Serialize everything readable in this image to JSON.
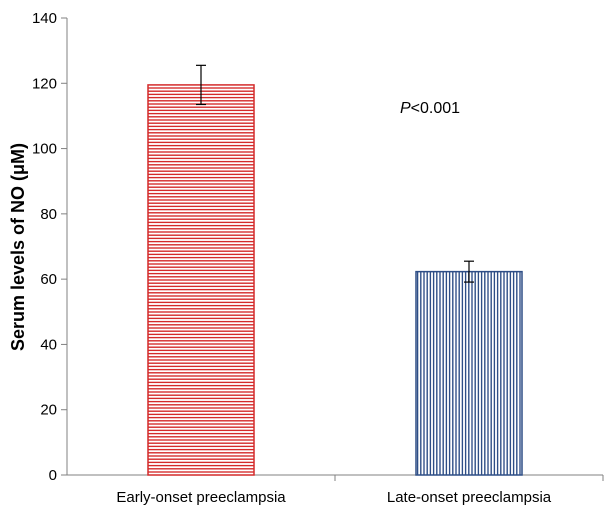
{
  "chart_data": {
    "type": "bar",
    "title": "",
    "xlabel": "",
    "ylabel": "Serum levels of NO (μM)",
    "ylim": [
      0,
      140
    ],
    "yticks": [
      0,
      20,
      40,
      60,
      80,
      100,
      120,
      140
    ],
    "grid": false,
    "categories": [
      "Early-onset preeclampsia",
      "Late-onset preeclampsia"
    ],
    "values": [
      119.5,
      62.3
    ],
    "errors": [
      6.0,
      3.2
    ],
    "bar_styles": [
      {
        "pattern": "horizontal-lines",
        "color": "#d42a2a"
      },
      {
        "pattern": "vertical-lines",
        "color": "#2e4e86"
      }
    ],
    "annotation": {
      "italic": "P",
      "text": "<0.001"
    }
  }
}
